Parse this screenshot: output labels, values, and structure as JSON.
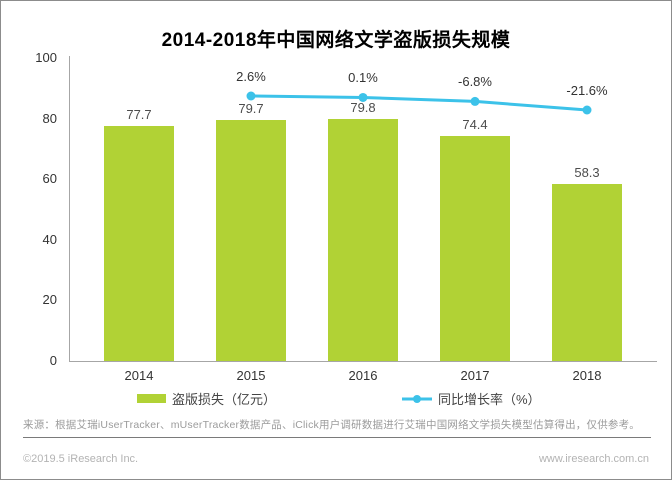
{
  "meta": {
    "source_note": "来源：根据艾瑞iUserTracker、mUserTracker数据产品、iClick用户调研数据进行艾瑞中国网络文学损失模型估算得出，仅供参考。",
    "copyright": "©2019.5 iResearch Inc.",
    "website": "www.iresearch.com.cn"
  },
  "colors": {
    "bar": "#b1d235",
    "line": "#3cc2e9",
    "axis": "#a6a6a6",
    "bar_label": "#4d4d4d",
    "line_label": "#333333",
    "footer_text": "#9b9b9b",
    "footer_rule": "#7a7a7a"
  },
  "chart_data": {
    "type": "bar+line",
    "title": "2014-2018年中国网络文学盗版损失规模",
    "categories": [
      "2014",
      "2015",
      "2016",
      "2017",
      "2018"
    ],
    "series": [
      {
        "name": "盗版损失（亿元）",
        "type": "bar",
        "values": [
          77.7,
          79.7,
          79.8,
          74.4,
          58.3
        ],
        "labels": [
          "77.7",
          "79.7",
          "79.8",
          "74.4",
          "58.3"
        ]
      },
      {
        "name": "同比增长率（%）",
        "type": "line",
        "values": [
          null,
          2.6,
          0.1,
          -6.8,
          -21.6
        ],
        "labels": [
          null,
          "2.6%",
          "0.1%",
          "-6.8%",
          "-21.6%"
        ]
      }
    ],
    "ylim": [
      0,
      100
    ],
    "yticks": [
      "0",
      "20",
      "40",
      "60",
      "80",
      "100"
    ],
    "grid": false,
    "legend_position": "bottom"
  }
}
